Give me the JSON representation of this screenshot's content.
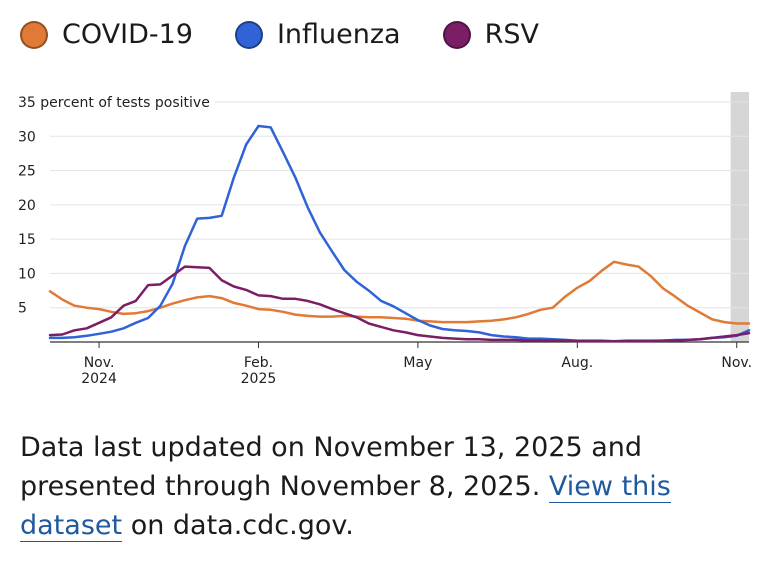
{
  "legend": {
    "items": [
      {
        "label": "COVID-19",
        "color": "#e07a36"
      },
      {
        "label": "Influenza",
        "color": "#2f63d6"
      },
      {
        "label": "RSV",
        "color": "#7a1f66"
      }
    ]
  },
  "chart_data": {
    "type": "line",
    "title": "",
    "ylabel": "35 percent of tests positive",
    "xlabel": "",
    "ylim": [
      0,
      35
    ],
    "yticks": [
      5,
      10,
      15,
      20,
      25,
      30
    ],
    "grid": true,
    "x_unit": "weeks since week ending Oct 5, 2024",
    "xlim": [
      0,
      57
    ],
    "xticks": [
      {
        "at": 4,
        "label": "Nov.",
        "sublabel": "2024"
      },
      {
        "at": 17,
        "label": "Feb.",
        "sublabel": "2025"
      },
      {
        "at": 30,
        "label": "May",
        "sublabel": ""
      },
      {
        "at": 43,
        "label": "Aug.",
        "sublabel": ""
      },
      {
        "at": 56,
        "label": "Nov.",
        "sublabel": ""
      }
    ],
    "shaded_region": [
      55.5,
      57
    ],
    "series": [
      {
        "name": "COVID-19",
        "color": "#e07a36",
        "values": [
          7.4,
          6.2,
          5.3,
          5.0,
          4.8,
          4.4,
          4.1,
          4.2,
          4.5,
          5.0,
          5.6,
          6.1,
          6.5,
          6.7,
          6.4,
          5.7,
          5.3,
          4.8,
          4.7,
          4.4,
          4.0,
          3.8,
          3.7,
          3.7,
          3.8,
          3.7,
          3.6,
          3.6,
          3.5,
          3.4,
          3.1,
          3.0,
          2.9,
          2.9,
          2.9,
          3.0,
          3.1,
          3.3,
          3.6,
          4.1,
          4.7,
          5.0,
          6.6,
          7.9,
          8.9,
          10.4,
          11.7,
          11.3,
          11.0,
          9.6,
          7.8,
          6.6,
          5.3,
          4.3,
          3.3,
          2.9,
          2.7,
          2.7
        ]
      },
      {
        "name": "Influenza",
        "color": "#2f63d6",
        "values": [
          0.6,
          0.6,
          0.7,
          0.9,
          1.2,
          1.5,
          2.0,
          2.8,
          3.5,
          5.3,
          8.5,
          14.0,
          18.0,
          18.1,
          18.4,
          24.0,
          28.8,
          31.5,
          31.3,
          27.7,
          24.0,
          19.7,
          16.0,
          13.2,
          10.5,
          8.8,
          7.5,
          6.0,
          5.2,
          4.2,
          3.2,
          2.4,
          1.9,
          1.7,
          1.6,
          1.4,
          1.0,
          0.8,
          0.7,
          0.5,
          0.5,
          0.4,
          0.3,
          0.2,
          0.2,
          0.2,
          0.1,
          0.2,
          0.2,
          0.2,
          0.2,
          0.3,
          0.3,
          0.4,
          0.6,
          0.7,
          0.9,
          1.7
        ]
      },
      {
        "name": "RSV",
        "color": "#7a1f66",
        "values": [
          1.0,
          1.1,
          1.7,
          2.0,
          2.8,
          3.6,
          5.3,
          6.0,
          8.3,
          8.4,
          9.7,
          11.0,
          10.9,
          10.8,
          9.0,
          8.1,
          7.6,
          6.8,
          6.7,
          6.3,
          6.3,
          6.0,
          5.5,
          4.8,
          4.2,
          3.6,
          2.7,
          2.2,
          1.7,
          1.4,
          1.0,
          0.8,
          0.6,
          0.5,
          0.4,
          0.4,
          0.3,
          0.3,
          0.3,
          0.2,
          0.2,
          0.2,
          0.2,
          0.1,
          0.1,
          0.1,
          0.1,
          0.1,
          0.1,
          0.1,
          0.2,
          0.2,
          0.3,
          0.4,
          0.6,
          0.8,
          1.0,
          1.3
        ]
      }
    ]
  },
  "footer": {
    "text_before": "Data last updated on November 13, 2025 and presented through November 8, 2025.",
    "link_text": "View this dataset",
    "text_after": "on data.cdc.gov."
  }
}
